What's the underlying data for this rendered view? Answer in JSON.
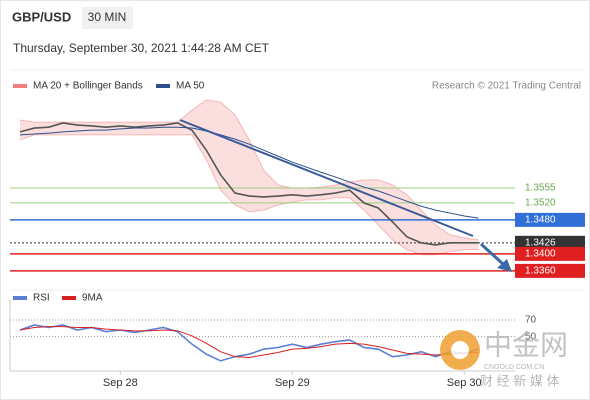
{
  "chart_data": [
    {
      "type": "line",
      "title": "GBP/USD",
      "timeframe": "30 MIN",
      "subtitle": "Thursday, September 30, 2021 1:44:28 AM CET",
      "source": "Research © 2021 Trading Central",
      "categories": [
        null,
        null,
        null,
        null,
        null,
        null,
        null,
        "Sep 28",
        null,
        null,
        null,
        null,
        null,
        null,
        null,
        null,
        null,
        null,
        null,
        "Sep 29",
        null,
        null,
        null,
        null,
        null,
        null,
        null,
        null,
        null,
        null,
        null,
        "Sep 30",
        null
      ],
      "ylim": [
        1.3315,
        1.3762
      ],
      "series": [
        {
          "color": "#555555",
          "values": [
            1.3687,
            1.3696,
            1.3698,
            1.3708,
            1.3703,
            1.3701,
            1.3698,
            1.3701,
            1.3698,
            1.3701,
            1.3703,
            1.3708,
            1.3691,
            1.3644,
            1.3586,
            1.3543,
            1.3536,
            1.3534,
            1.3536,
            1.3539,
            1.3536,
            1.3539,
            1.3543,
            1.355,
            1.352,
            1.3508,
            1.3475,
            1.344,
            1.3426,
            1.3421,
            1.3426,
            1.3426,
            1.3426
          ]
        },
        {
          "name": "MA 50",
          "color": "#2c4f8c",
          "values": [
            1.368,
            1.3682,
            1.3684,
            1.3687,
            1.3689,
            1.3691,
            1.3691,
            1.3694,
            1.3696,
            1.3696,
            1.3698,
            1.3698,
            1.3696,
            1.3689,
            1.368,
            1.367,
            1.3658,
            1.3644,
            1.363,
            1.3616,
            1.3604,
            1.3592,
            1.3581,
            1.3569,
            1.3557,
            1.3548,
            1.3536,
            1.3524,
            1.3512,
            1.3503,
            1.3496,
            1.3489,
            1.3484
          ]
        }
      ],
      "bands": {
        "name": "MA 20 + Bollinger Bands",
        "color": "#f08080",
        "upper": [
          1.3715,
          1.371,
          1.371,
          1.371,
          1.371,
          1.371,
          1.371,
          1.371,
          1.371,
          1.371,
          1.371,
          1.371,
          1.3738,
          1.3762,
          1.3757,
          1.3727,
          1.3668,
          1.3597,
          1.3562,
          1.3555,
          1.3555,
          1.3557,
          1.3562,
          1.3569,
          1.3574,
          1.3574,
          1.3562,
          1.3539,
          1.3503,
          1.3468,
          1.3445,
          1.3438,
          1.3433
        ],
        "lower": [
          1.3668,
          1.368,
          1.368,
          1.368,
          1.368,
          1.368,
          1.368,
          1.368,
          1.368,
          1.368,
          1.368,
          1.368,
          1.368,
          1.3621,
          1.355,
          1.3515,
          1.3499,
          1.3503,
          1.3515,
          1.3522,
          1.3527,
          1.3527,
          1.3532,
          1.3532,
          1.3503,
          1.3468,
          1.3433,
          1.341,
          1.3398,
          1.3398,
          1.3405,
          1.341,
          1.341
        ]
      },
      "levels": [
        {
          "value": 1.3555,
          "label": "1.3555",
          "color": "#9bcf7f",
          "text": "#6aa84f",
          "boxed": false
        },
        {
          "value": 1.352,
          "label": "1.3520",
          "color": "#9bcf7f",
          "text": "#6aa84f",
          "boxed": false
        },
        {
          "value": 1.348,
          "label": "1.3480",
          "color": "#2f6fd6",
          "text": "#ffffff",
          "boxed": true
        },
        {
          "value": 1.3426,
          "label": "1.3426",
          "color": "#333333",
          "text": "#ffffff",
          "boxed": true,
          "dotted": true
        },
        {
          "value": 1.34,
          "label": "1.3400",
          "color": "#e02020",
          "text": "#ffffff",
          "boxed": true
        },
        {
          "value": 1.336,
          "label": "1.3360",
          "color": "#e02020",
          "text": "#ffffff",
          "boxed": true
        }
      ]
    },
    {
      "type": "line",
      "ylim": [
        10,
        100
      ],
      "yticks": [
        70,
        50
      ],
      "series": [
        {
          "name": "RSI",
          "color": "#5b7fd6",
          "values": [
            58,
            64,
            61,
            64,
            58,
            61,
            56,
            58,
            55,
            58,
            61,
            56,
            41,
            29,
            21,
            26,
            29,
            35,
            37,
            41,
            37,
            41,
            44,
            46,
            37,
            35,
            26,
            28,
            32,
            26,
            32,
            30,
            35
          ]
        },
        {
          "name": "9MA",
          "color": "#d62020",
          "values": [
            58,
            61,
            62,
            62,
            61,
            61,
            59,
            58,
            57,
            57,
            58,
            57,
            51,
            42,
            32,
            26,
            25,
            28,
            31,
            35,
            36,
            38,
            41,
            42,
            41,
            38,
            34,
            30,
            29,
            28,
            29,
            30,
            31
          ]
        }
      ]
    }
  ],
  "watermark": {
    "name": "中金网",
    "site": "CNGOLD.COM.CN",
    "slogan": "财 经 新 媒 体"
  }
}
